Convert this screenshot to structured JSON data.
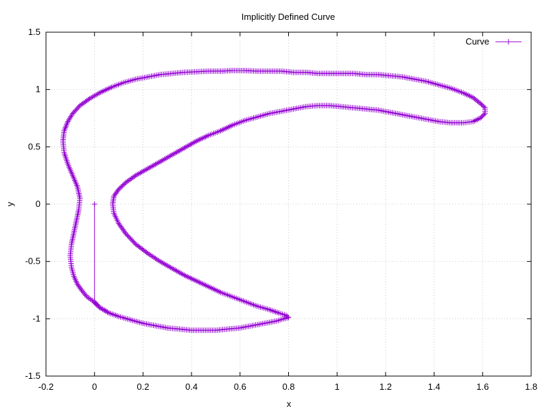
{
  "chart_data": {
    "type": "line",
    "title": "Implicitly Defined Curve",
    "xlabel": "x",
    "ylabel": "y",
    "xlim": [
      -0.2,
      1.8
    ],
    "ylim": [
      -1.5,
      1.5
    ],
    "xticks": [
      "-0.2",
      "0",
      "0.2",
      "0.4",
      "0.6",
      "0.8",
      "1",
      "1.2",
      "1.4",
      "1.6",
      "1.8"
    ],
    "yticks": [
      "-1.5",
      "-1",
      "-0.5",
      "0",
      "0.5",
      "1",
      "1.5"
    ],
    "grid": true,
    "legend_position": "top-right",
    "line_color": "#9400d3",
    "marker": "plus",
    "series": [
      {
        "name": "Curve",
        "points": [
          [
            0.0,
            0.0
          ],
          [
            0.0,
            -0.85
          ],
          [
            0.02,
            -0.9
          ],
          [
            0.06,
            -0.95
          ],
          [
            0.1,
            -0.98
          ],
          [
            0.15,
            -1.01
          ],
          [
            0.2,
            -1.04
          ],
          [
            0.25,
            -1.06
          ],
          [
            0.3,
            -1.08
          ],
          [
            0.35,
            -1.09
          ],
          [
            0.4,
            -1.1
          ],
          [
            0.45,
            -1.1
          ],
          [
            0.5,
            -1.1
          ],
          [
            0.55,
            -1.09
          ],
          [
            0.6,
            -1.08
          ],
          [
            0.65,
            -1.06
          ],
          [
            0.7,
            -1.04
          ],
          [
            0.75,
            -1.02
          ],
          [
            0.78,
            -1.0
          ],
          [
            0.8,
            -0.99
          ],
          [
            0.79,
            -0.97
          ],
          [
            0.76,
            -0.95
          ],
          [
            0.72,
            -0.92
          ],
          [
            0.67,
            -0.89
          ],
          [
            0.62,
            -0.85
          ],
          [
            0.57,
            -0.81
          ],
          [
            0.52,
            -0.77
          ],
          [
            0.47,
            -0.72
          ],
          [
            0.42,
            -0.67
          ],
          [
            0.37,
            -0.62
          ],
          [
            0.32,
            -0.56
          ],
          [
            0.27,
            -0.5
          ],
          [
            0.22,
            -0.43
          ],
          [
            0.17,
            -0.35
          ],
          [
            0.13,
            -0.26
          ],
          [
            0.1,
            -0.17
          ],
          [
            0.08,
            -0.08
          ],
          [
            0.075,
            0.0
          ],
          [
            0.08,
            0.07
          ],
          [
            0.1,
            0.13
          ],
          [
            0.13,
            0.19
          ],
          [
            0.17,
            0.25
          ],
          [
            0.22,
            0.31
          ],
          [
            0.27,
            0.37
          ],
          [
            0.32,
            0.43
          ],
          [
            0.37,
            0.49
          ],
          [
            0.42,
            0.55
          ],
          [
            0.47,
            0.6
          ],
          [
            0.52,
            0.64
          ],
          [
            0.57,
            0.69
          ],
          [
            0.62,
            0.73
          ],
          [
            0.67,
            0.76
          ],
          [
            0.72,
            0.79
          ],
          [
            0.77,
            0.81
          ],
          [
            0.82,
            0.83
          ],
          [
            0.87,
            0.85
          ],
          [
            0.92,
            0.86
          ],
          [
            0.97,
            0.86
          ],
          [
            1.02,
            0.85
          ],
          [
            1.07,
            0.84
          ],
          [
            1.12,
            0.83
          ],
          [
            1.17,
            0.82
          ],
          [
            1.22,
            0.8
          ],
          [
            1.27,
            0.78
          ],
          [
            1.32,
            0.76
          ],
          [
            1.37,
            0.74
          ],
          [
            1.42,
            0.72
          ],
          [
            1.47,
            0.71
          ],
          [
            1.52,
            0.71
          ],
          [
            1.56,
            0.72
          ],
          [
            1.59,
            0.75
          ],
          [
            1.61,
            0.79
          ],
          [
            1.61,
            0.84
          ],
          [
            1.59,
            0.88
          ],
          [
            1.56,
            0.93
          ],
          [
            1.52,
            0.97
          ],
          [
            1.47,
            1.01
          ],
          [
            1.42,
            1.04
          ],
          [
            1.37,
            1.07
          ],
          [
            1.32,
            1.09
          ],
          [
            1.27,
            1.11
          ],
          [
            1.22,
            1.12
          ],
          [
            1.17,
            1.13
          ],
          [
            1.12,
            1.13
          ],
          [
            1.07,
            1.14
          ],
          [
            1.02,
            1.14
          ],
          [
            0.97,
            1.14
          ],
          [
            0.92,
            1.14
          ],
          [
            0.87,
            1.15
          ],
          [
            0.82,
            1.15
          ],
          [
            0.77,
            1.16
          ],
          [
            0.72,
            1.16
          ],
          [
            0.67,
            1.16
          ],
          [
            0.62,
            1.165
          ],
          [
            0.57,
            1.165
          ],
          [
            0.52,
            1.16
          ],
          [
            0.47,
            1.16
          ],
          [
            0.42,
            1.155
          ],
          [
            0.37,
            1.15
          ],
          [
            0.32,
            1.14
          ],
          [
            0.27,
            1.13
          ],
          [
            0.22,
            1.11
          ],
          [
            0.17,
            1.09
          ],
          [
            0.12,
            1.06
          ],
          [
            0.07,
            1.02
          ],
          [
            0.02,
            0.97
          ],
          [
            -0.02,
            0.92
          ],
          [
            -0.06,
            0.86
          ],
          [
            -0.09,
            0.79
          ],
          [
            -0.11,
            0.72
          ],
          [
            -0.125,
            0.64
          ],
          [
            -0.13,
            0.55
          ],
          [
            -0.125,
            0.45
          ],
          [
            -0.11,
            0.35
          ],
          [
            -0.09,
            0.25
          ],
          [
            -0.07,
            0.15
          ],
          [
            -0.06,
            0.05
          ],
          [
            -0.065,
            -0.05
          ],
          [
            -0.075,
            -0.15
          ],
          [
            -0.085,
            -0.25
          ],
          [
            -0.095,
            -0.35
          ],
          [
            -0.1,
            -0.45
          ],
          [
            -0.095,
            -0.55
          ],
          [
            -0.085,
            -0.63
          ],
          [
            -0.07,
            -0.7
          ],
          [
            -0.05,
            -0.76
          ],
          [
            -0.03,
            -0.81
          ],
          [
            -0.01,
            -0.84
          ],
          [
            0.0,
            -0.86
          ],
          [
            0.02,
            -0.9
          ],
          [
            0.06,
            -0.95
          ]
        ]
      }
    ]
  }
}
